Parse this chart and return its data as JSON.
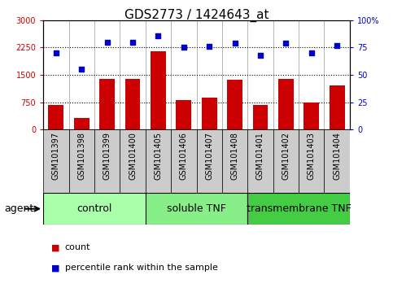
{
  "title": "GDS2773 / 1424643_at",
  "samples": [
    "GSM101397",
    "GSM101398",
    "GSM101399",
    "GSM101400",
    "GSM101405",
    "GSM101406",
    "GSM101407",
    "GSM101408",
    "GSM101401",
    "GSM101402",
    "GSM101403",
    "GSM101404"
  ],
  "counts": [
    670,
    320,
    1380,
    1400,
    2150,
    820,
    870,
    1370,
    680,
    1380,
    740,
    1200
  ],
  "percentiles": [
    70,
    55,
    80,
    80,
    86,
    75,
    76,
    79,
    68,
    79,
    70,
    77
  ],
  "groups": [
    {
      "label": "control",
      "start": 0,
      "end": 3,
      "color": "#aaffaa"
    },
    {
      "label": "soluble TNF",
      "start": 4,
      "end": 7,
      "color": "#88ee88"
    },
    {
      "label": "transmembrane TNF",
      "start": 8,
      "end": 11,
      "color": "#44cc44"
    }
  ],
  "ylim_left": [
    0,
    3000
  ],
  "ylim_right": [
    0,
    100
  ],
  "yticks_left": [
    0,
    750,
    1500,
    2250,
    3000
  ],
  "yticks_right": [
    0,
    25,
    50,
    75,
    100
  ],
  "ytick_labels_left": [
    "0",
    "750",
    "1500",
    "2250",
    "3000"
  ],
  "ytick_labels_right": [
    "0",
    "25",
    "50",
    "75",
    "100%"
  ],
  "bar_color": "#cc0000",
  "dot_color": "#0000cc",
  "bar_width": 0.6,
  "agent_label": "agent",
  "legend_count": "count",
  "legend_percentile": "percentile rank within the sample",
  "title_fontsize": 11,
  "tick_fontsize": 7,
  "group_fontsize": 9,
  "xtick_bg": "#cccccc",
  "group_band_colors": [
    "#aaffaa",
    "#88ee88",
    "#44cc44"
  ]
}
